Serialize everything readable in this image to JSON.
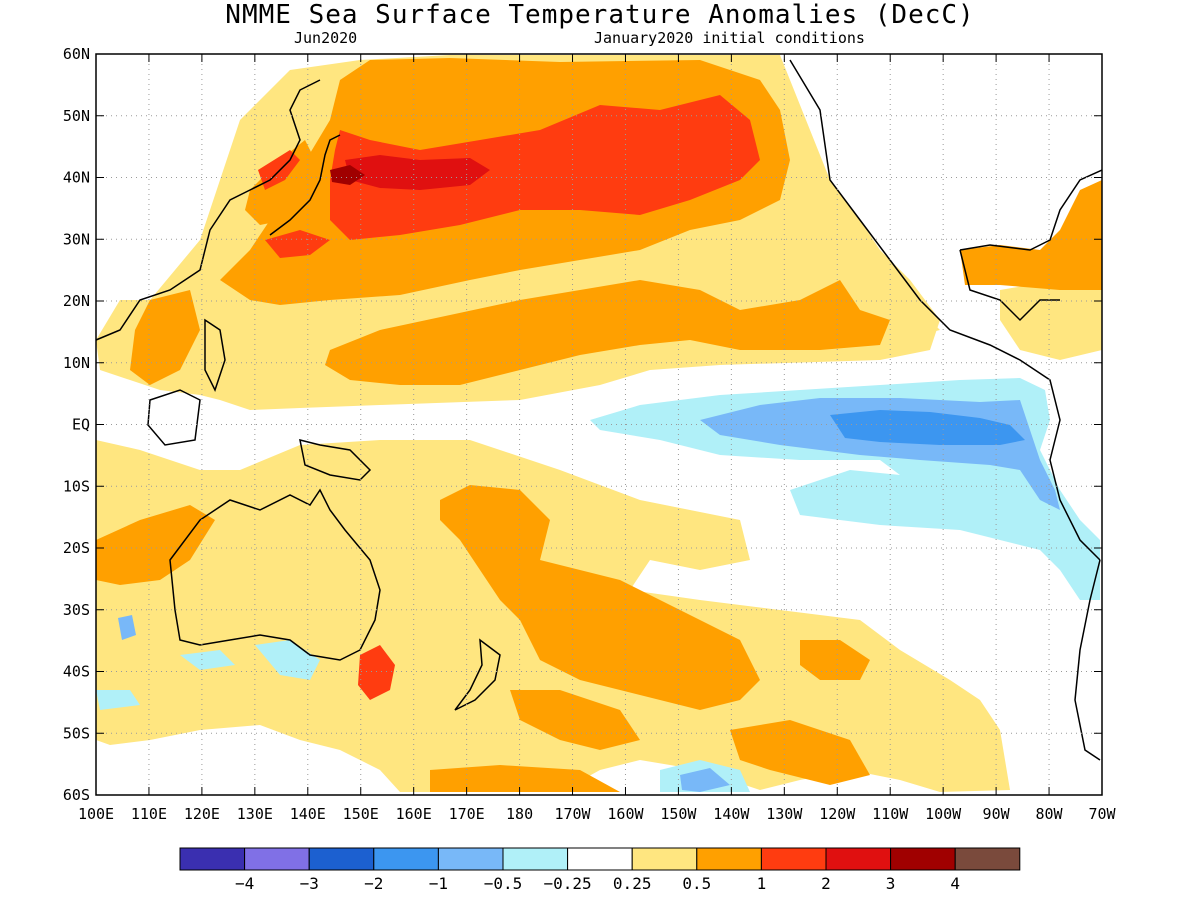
{
  "title": "NMME Sea Surface Temperature Anomalies (DecC)",
  "valid_month": "Jun2020",
  "initial_conditions": "January2020 initial conditions",
  "map": {
    "lat_ticks": [
      "60N",
      "50N",
      "40N",
      "30N",
      "20N",
      "10N",
      "EQ",
      "10S",
      "20S",
      "30S",
      "40S",
      "50S",
      "60S"
    ],
    "lon_ticks": [
      "100E",
      "110E",
      "120E",
      "130E",
      "140E",
      "150E",
      "160E",
      "170E",
      "180",
      "170W",
      "160W",
      "150W",
      "140W",
      "130W",
      "120W",
      "110W",
      "100W",
      "90W",
      "80W",
      "70W"
    ],
    "lat_range": [
      -60,
      60
    ],
    "lon_range": [
      100,
      290
    ],
    "grid": "dotted",
    "land_color": "#ffffff"
  },
  "colorbar": {
    "colors": [
      "#3a2fb0",
      "#8070e6",
      "#1c60d0",
      "#3c96f0",
      "#78b8f8",
      "#b0f0f8",
      "#ffffff",
      "#ffe680",
      "#ffa000",
      "#ff3c10",
      "#e01010",
      "#a00000",
      "#7a4a3c"
    ],
    "labels": [
      "−4",
      "−3",
      "−2",
      "−1",
      "−0.5",
      "−0.25",
      "0.25",
      "0.5",
      "1",
      "2",
      "3",
      "4"
    ]
  },
  "regions": [
    {
      "name": "north-pacific-core",
      "level": "2"
    },
    {
      "name": "north-pacific-band",
      "level": "1"
    },
    {
      "name": "equatorial-cold-tongue",
      "level": "-1"
    },
    {
      "name": "south-pacific-warm",
      "level": "0.5"
    },
    {
      "name": "tasman-warm-spot",
      "level": "2"
    }
  ]
}
